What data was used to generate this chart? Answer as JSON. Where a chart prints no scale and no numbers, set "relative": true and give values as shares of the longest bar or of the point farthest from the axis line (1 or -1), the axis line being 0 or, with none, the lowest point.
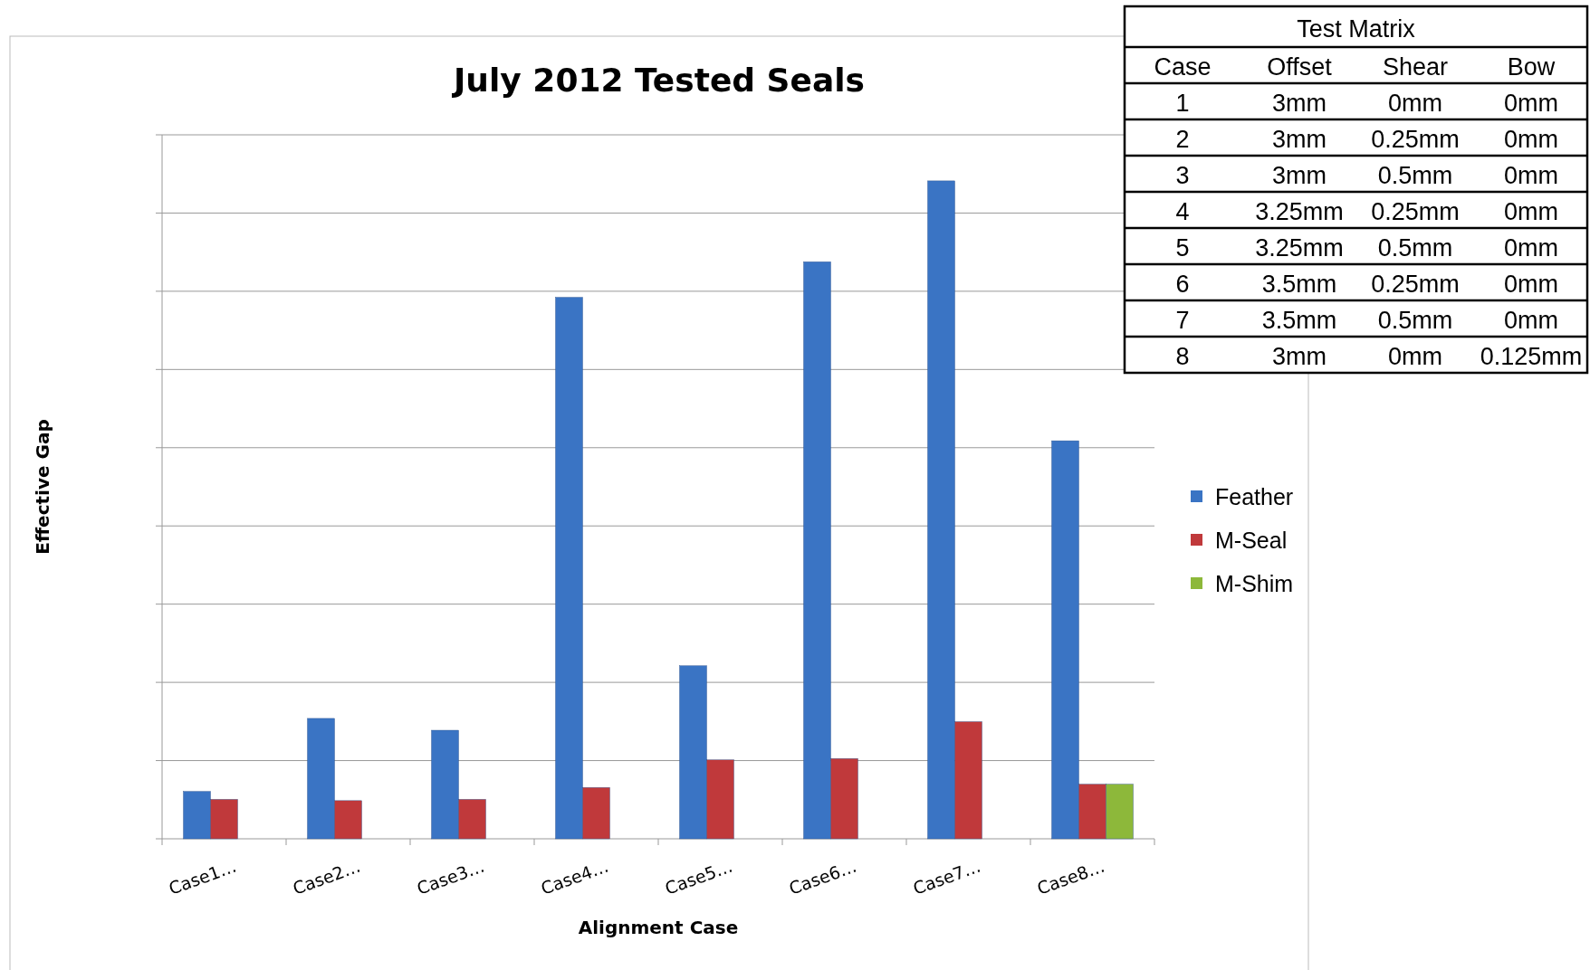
{
  "chart_data": [
    {
      "type": "bar",
      "title": "July 2012 Tested Seals",
      "xlabel": "Alignment Case",
      "ylabel": "Effective Gap",
      "relative": true,
      "grid": "y",
      "legend": "right",
      "categories": [
        "Case1…",
        "Case2…",
        "Case3…",
        "Case4…",
        "Case5…",
        "Case6…",
        "Case7…",
        "Case8…"
      ],
      "series": [
        {
          "name": "Feather",
          "color": "#3a74c4",
          "values": [
            0.072,
            0.183,
            0.165,
            0.823,
            0.263,
            0.877,
            1,
            0.605
          ]
        },
        {
          "name": "M-Seal",
          "color": "#c0393b",
          "values": [
            0.06,
            0.058,
            0.06,
            0.078,
            0.12,
            0.122,
            0.178,
            0.083
          ]
        },
        {
          "name": "M-Shim",
          "color": "#8db83a",
          "values": [
            null,
            null,
            null,
            null,
            null,
            null,
            null,
            0.083
          ]
        }
      ]
    },
    {
      "type": "heatmap",
      "title": "Test Matrix",
      "ylabel": "Case",
      "categories": [
        "Offset",
        "Shear",
        "Bow"
      ],
      "y_categories": [
        "1",
        "2",
        "3",
        "4",
        "5",
        "6",
        "7",
        "8"
      ],
      "cells": [
        [
          null,
          null,
          null
        ],
        [
          null,
          null,
          null
        ],
        [
          null,
          null,
          null
        ],
        [
          null,
          null,
          null
        ],
        [
          null,
          null,
          null
        ],
        [
          null,
          null,
          null
        ],
        [
          null,
          null,
          null
        ],
        [
          null,
          null,
          null
        ]
      ],
      "cell_labels": [
        [
          "3mm",
          "0mm",
          "0mm"
        ],
        [
          "3mm",
          "0.25mm",
          "0mm"
        ],
        [
          "3mm",
          "0.5mm",
          "0mm"
        ],
        [
          "3.25mm",
          "0.25mm",
          "0mm"
        ],
        [
          "3.25mm",
          "0.5mm",
          "0mm"
        ],
        [
          "3.5mm",
          "0.25mm",
          "0mm"
        ],
        [
          "3.5mm",
          "0.5mm",
          "0mm"
        ],
        [
          "3mm",
          "0mm",
          "0.125mm"
        ]
      ]
    }
  ]
}
